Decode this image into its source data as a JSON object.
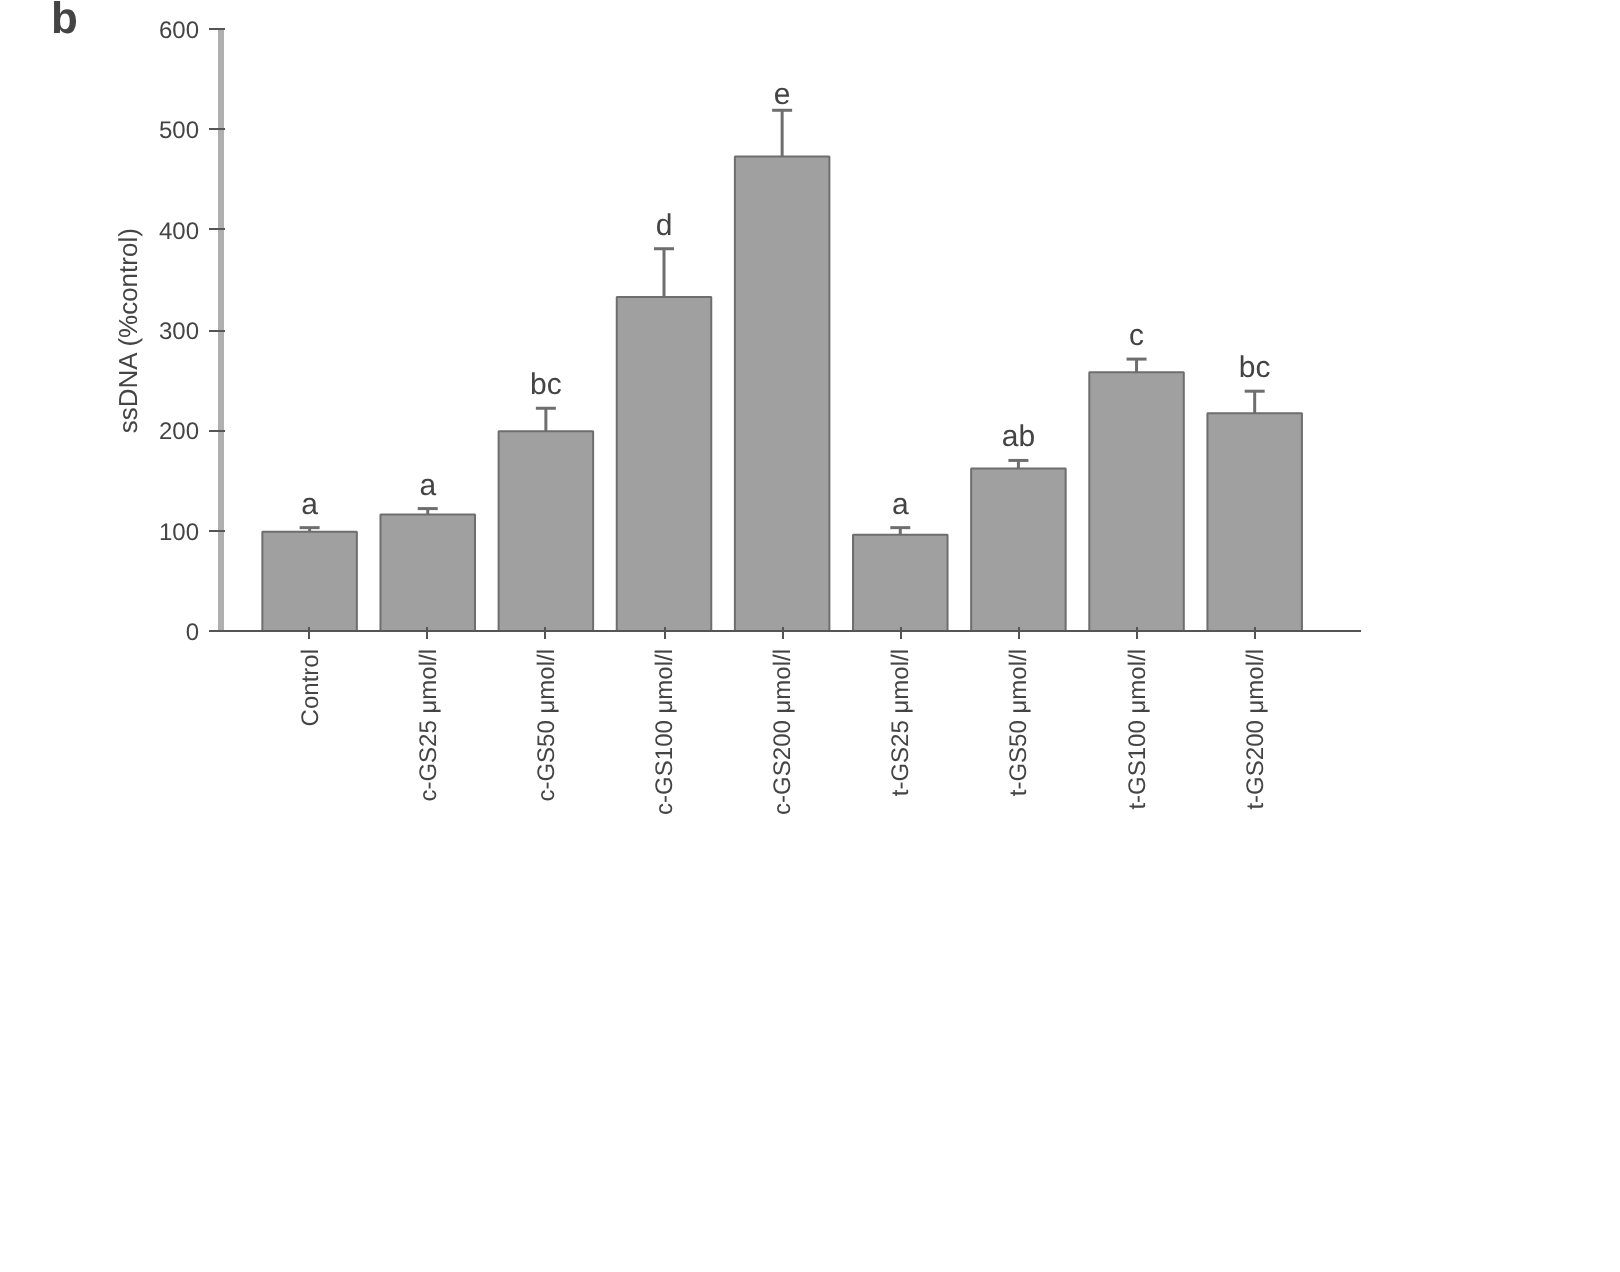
{
  "chart_data": {
    "type": "bar",
    "ylabel": "ssDNA (%control)",
    "categories": [
      "Control",
      "c-GS25 μmol/l",
      "c-GS50 μmol/l",
      "c-GS100 μmol/l",
      "c-GS200 μmol/l",
      "t-GS25 μmol/l",
      "t-GS50 μmol/l",
      "t-GS100 μmol/l",
      "t-GS200 μmol/l"
    ],
    "values": [
      99,
      116,
      199,
      333,
      473,
      96,
      162,
      258,
      217
    ],
    "errors": [
      4,
      6,
      23,
      48,
      46,
      7,
      8,
      13,
      22
    ],
    "color": "#a0a0a0",
    "ylim": [
      0,
      600
    ],
    "yticks": [
      0,
      100,
      200,
      300,
      400,
      500,
      600
    ],
    "grid": false,
    "annotations": [
      "b",
      {
        "text": "a",
        "x": "Control",
        "y": 103
      },
      {
        "text": "a",
        "x": "c-GS25 μmol/l",
        "y": 122
      },
      {
        "text": "bc",
        "x": "c-GS50 μmol/l",
        "y": 222
      },
      {
        "text": "d",
        "x": "c-GS100 μmol/l",
        "y": 381
      },
      {
        "text": "e",
        "x": "c-GS200 μmol/l",
        "y": 519
      },
      {
        "text": "a",
        "x": "t-GS25 μmol/l",
        "y": 103
      },
      {
        "text": "ab",
        "x": "t-GS50 μmol/l",
        "y": 170
      },
      {
        "text": "c",
        "x": "t-GS100 μmol/l",
        "y": 271
      },
      {
        "text": "bc",
        "x": "t-GS200 μmol/l",
        "y": 239
      }
    ]
  }
}
